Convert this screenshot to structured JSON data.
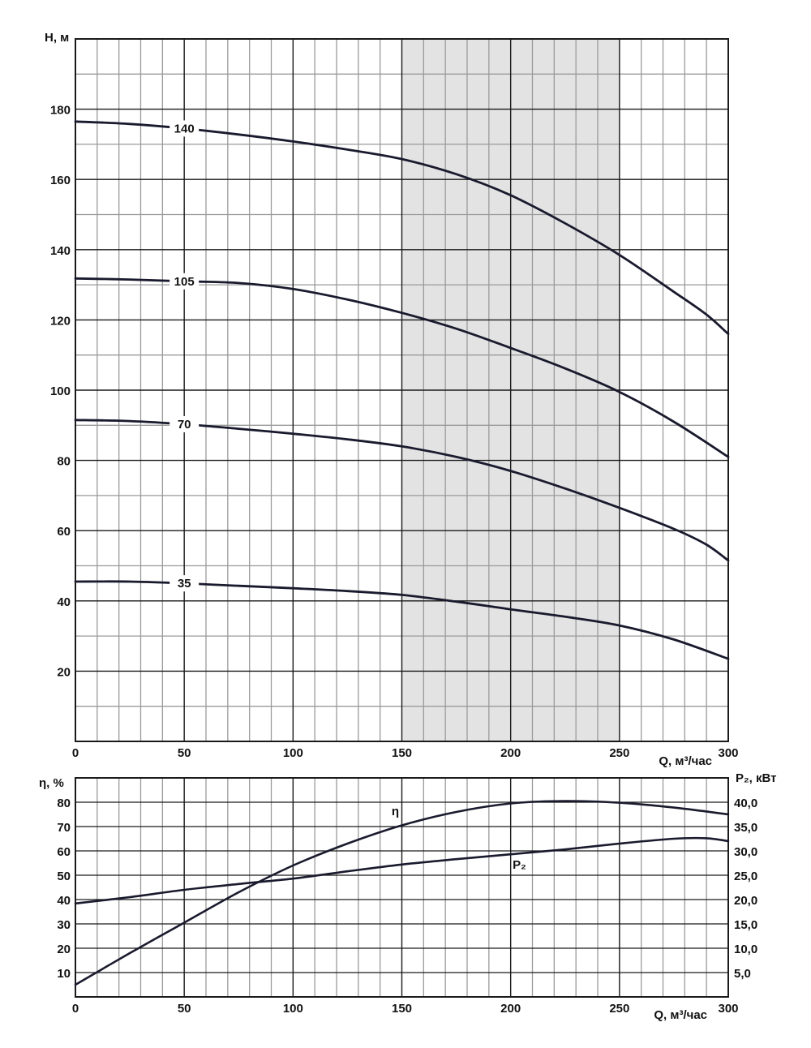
{
  "colors": {
    "grid_major": "#1a1a1a",
    "grid_minor": "#9a9a9a",
    "curve": "#1a1a2e",
    "shaded_region": "#e3e3e3",
    "background": "#ffffff"
  },
  "chart_data": [
    {
      "type": "line",
      "title": "",
      "xlabel": "Q, м³/час",
      "ylabel": "H, м",
      "xlim": [
        0,
        300
      ],
      "ylim": [
        0,
        200
      ],
      "x_ticks": [
        "0",
        "50",
        "100",
        "150",
        "200",
        "250",
        "300"
      ],
      "y_ticks": [
        "20",
        "40",
        "60",
        "80",
        "100",
        "120",
        "140",
        "160",
        "180"
      ],
      "shaded_range_x": [
        150,
        250
      ],
      "series": [
        {
          "name": "140",
          "label_at_x": 50,
          "x": [
            0,
            25,
            50,
            75,
            100,
            125,
            150,
            175,
            200,
            225,
            250,
            275,
            290,
            300
          ],
          "y": [
            176.5,
            175.8,
            174.5,
            172.8,
            170.8,
            168.5,
            165.8,
            161.5,
            155.5,
            147.5,
            138.5,
            128,
            121.5,
            116
          ]
        },
        {
          "name": "105",
          "label_at_x": 50,
          "x": [
            0,
            25,
            50,
            75,
            100,
            125,
            150,
            175,
            200,
            225,
            250,
            275,
            300
          ],
          "y": [
            131.8,
            131.5,
            131,
            130.5,
            128.8,
            125.8,
            122,
            117.5,
            112,
            106.2,
            99.5,
            91,
            81
          ]
        },
        {
          "name": "70",
          "label_at_x": 50,
          "x": [
            0,
            25,
            50,
            75,
            100,
            125,
            150,
            175,
            200,
            225,
            250,
            275,
            290,
            300
          ],
          "y": [
            91.5,
            91.2,
            90.3,
            89,
            87.6,
            86,
            84,
            81,
            77,
            72,
            66.5,
            60.5,
            56,
            51.5
          ]
        },
        {
          "name": "35",
          "label_at_x": 50,
          "x": [
            0,
            25,
            50,
            75,
            100,
            125,
            150,
            175,
            200,
            225,
            250,
            275,
            300
          ],
          "y": [
            45.5,
            45.5,
            45,
            44.3,
            43.6,
            42.8,
            41.7,
            39.8,
            37.6,
            35.5,
            33,
            29,
            23.5
          ]
        }
      ]
    },
    {
      "type": "line",
      "title": "",
      "xlabel": "Q, м³/час",
      "ylabel": "η, %",
      "ylabel_right": "P₂, кВт",
      "xlim": [
        0,
        300
      ],
      "ylim": [
        0,
        90
      ],
      "ylim_right": [
        0,
        45
      ],
      "x_ticks": [
        "0",
        "50",
        "100",
        "150",
        "200",
        "250",
        "300"
      ],
      "y_ticks": [
        "10",
        "20",
        "30",
        "40",
        "50",
        "60",
        "70",
        "80"
      ],
      "y_ticks_right": [
        "5,0",
        "10,0",
        "15,0",
        "20,0",
        "25,0",
        "30,0",
        "35,0",
        "40,0"
      ],
      "series": [
        {
          "name": "η",
          "axis": "left",
          "label_at_x": 147,
          "x": [
            0,
            25,
            50,
            75,
            100,
            125,
            150,
            175,
            200,
            225,
            250,
            275,
            300
          ],
          "y": [
            5,
            18,
            30.5,
            43,
            54,
            63,
            70.5,
            76,
            79.5,
            80.5,
            79.8,
            77.8,
            75
          ]
        },
        {
          "name": "P₂",
          "axis": "right",
          "label_at_x": 204,
          "x": [
            0,
            25,
            50,
            75,
            100,
            125,
            150,
            175,
            200,
            225,
            250,
            275,
            290,
            300
          ],
          "y": [
            19.2,
            20.5,
            22,
            23.2,
            24.3,
            25.8,
            27.2,
            28.3,
            29.3,
            30.3,
            31.5,
            32.5,
            32.6,
            32
          ]
        }
      ]
    }
  ]
}
